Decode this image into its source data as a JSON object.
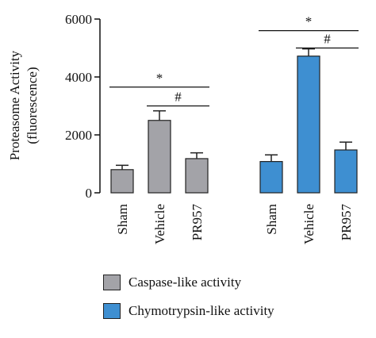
{
  "chart_data": {
    "type": "bar",
    "ylabel": "Proteasome Activity",
    "ylabel_line2": "(fluorescence)",
    "ylim": [
      0,
      6000
    ],
    "yticks": [
      0,
      2000,
      4000,
      6000
    ],
    "ytick_labels": [
      "0",
      "2000",
      "4000",
      "6000"
    ],
    "groups": [
      {
        "series": "Caspase-like activity",
        "color": "#a3a3a8",
        "categories": [
          "Sham",
          "Vehicle",
          "PR957"
        ],
        "values": [
          800,
          2500,
          1180
        ],
        "errors": [
          150,
          330,
          200
        ]
      },
      {
        "series": "Chymotrypsin-like activity",
        "color": "#3e8fd1",
        "categories": [
          "Sham",
          "Vehicle",
          "PR957"
        ],
        "values": [
          1080,
          4720,
          1480
        ],
        "errors": [
          230,
          250,
          270
        ]
      }
    ],
    "annotations": [
      {
        "text": "*",
        "group": 0,
        "from": 0,
        "to": 2,
        "level": 3650
      },
      {
        "text": "#",
        "group": 0,
        "from": 1,
        "to": 2,
        "level": 3000
      },
      {
        "text": "*",
        "group": 1,
        "from": 0,
        "to": 2,
        "level": 5600
      },
      {
        "text": "#",
        "group": 1,
        "from": 1,
        "to": 2,
        "level": 5000
      }
    ],
    "legend": {
      "position": "bottom",
      "items": [
        {
          "label": "Caspase-like activity",
          "color": "#a3a3a8"
        },
        {
          "label": "Chymotrypsin-like activity",
          "color": "#3e8fd1"
        }
      ]
    }
  }
}
